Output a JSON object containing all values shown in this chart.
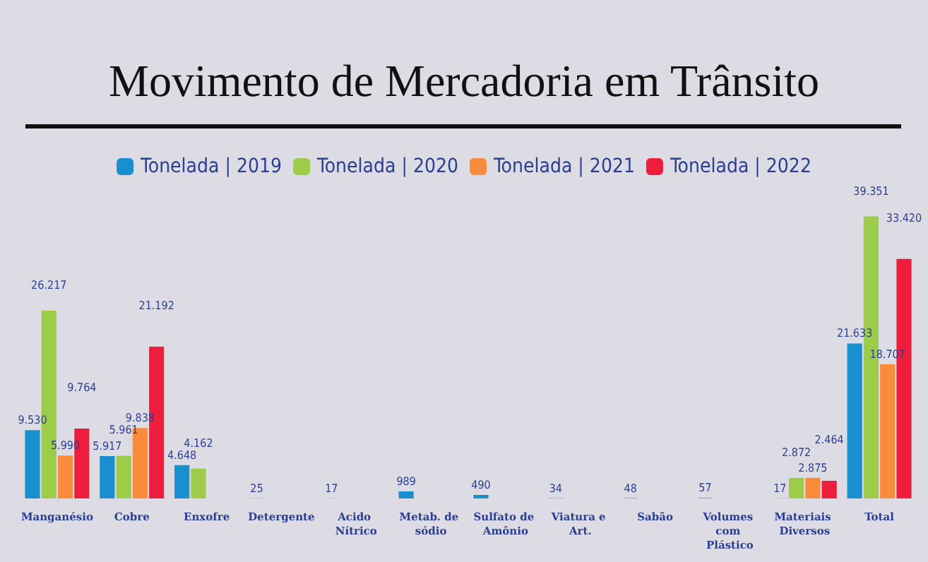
{
  "chart_data": {
    "type": "bar",
    "title": "Movimento de Mercadoria em Trânsito",
    "categories": [
      "Manganésio",
      "Cobre",
      "Enxofre",
      "Detergente",
      "Acido Nítrico",
      "Metab. de sódio",
      "Sulfato de Amônio",
      "Viatura e Art.",
      "Sabão",
      "Volumes com Plástico",
      "Materiais Diversos",
      "Total"
    ],
    "series": [
      {
        "name": "Tonelada | 2019",
        "color": "#1a8fd0",
        "values": [
          9530,
          5917,
          4648,
          25,
          17,
          989,
          490,
          34,
          48,
          57,
          17,
          21633
        ],
        "value_labels": [
          "9.530",
          "5.917",
          "4.648",
          "25",
          "17",
          "989",
          "490",
          "34",
          "48",
          "57",
          "17",
          "21.633"
        ]
      },
      {
        "name": "Tonelada | 2020",
        "color": "#9dcc48",
        "values": [
          26217,
          5961,
          4162,
          null,
          null,
          null,
          null,
          null,
          null,
          null,
          2872,
          39351
        ],
        "value_labels": [
          "26.217",
          "5.961",
          "4.162",
          null,
          null,
          null,
          null,
          null,
          null,
          null,
          "2.872",
          "39.351"
        ]
      },
      {
        "name": "Tonelada | 2021",
        "color": "#f98b3c",
        "values": [
          5990,
          9838,
          null,
          null,
          null,
          null,
          null,
          null,
          null,
          null,
          2875,
          18707
        ],
        "value_labels": [
          "5.990",
          "9.838",
          null,
          null,
          null,
          null,
          null,
          null,
          null,
          null,
          "2.875",
          "18.707"
        ]
      },
      {
        "name": "Tonelada | 2022",
        "color": "#ee1d3c",
        "values": [
          9764,
          21192,
          null,
          null,
          null,
          null,
          null,
          null,
          null,
          null,
          2464,
          33420
        ],
        "value_labels": [
          "9.764",
          "21.192",
          null,
          null,
          null,
          null,
          null,
          null,
          null,
          null,
          "2.464",
          "33.420"
        ]
      }
    ],
    "legend": "top"
  }
}
